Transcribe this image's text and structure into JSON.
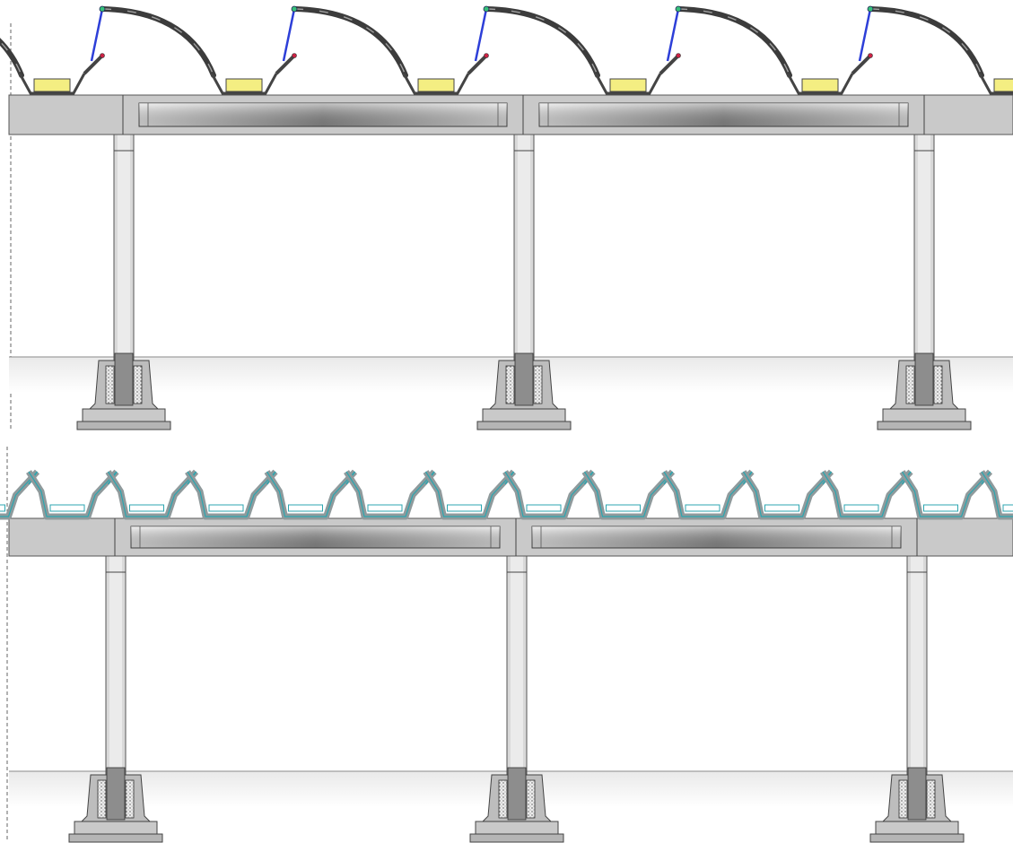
{
  "diagram": {
    "type": "structural-elevation",
    "panels": [
      {
        "id": "upper",
        "roof_style": "curved-sawtooth",
        "roof_modules": 6,
        "columns": 3,
        "beam_segments": 4,
        "colors": {
          "glazing": "#f4ee82",
          "arch": "#3c3c3c",
          "brace": "#2d3fd8",
          "node": "#36c07a",
          "beam": "#c9c9c9",
          "column": "#d9d9d9",
          "footing": "#bdbdbd",
          "anchor_fill": "#e6e6e6"
        }
      },
      {
        "id": "lower",
        "roof_style": "folded-trough",
        "roof_modules": 13,
        "columns": 3,
        "beam_segments": 4,
        "colors": {
          "trough_outline": "#2ca6b0",
          "trough_fill": "#8f9a9c",
          "beam": "#c9c9c9",
          "column": "#d9d9d9",
          "footing": "#bdbdbd",
          "anchor_fill": "#e6e6e6"
        }
      }
    ]
  }
}
